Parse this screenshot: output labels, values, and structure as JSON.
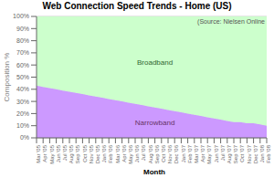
{
  "chart_data": {
    "type": "area",
    "title": "Web Connection Speed Trends - Home (US)",
    "xlabel": "Month",
    "ylabel": "Composition %",
    "stacked": true,
    "grid": true,
    "categories": [
      "Mar\n'05",
      "Apr\n'05",
      "May\n'05",
      "Jun\n'05",
      "Jul\n'05",
      "Aug\n'05",
      "Sep\n'05",
      "Oct\n'05",
      "Nov\n'05",
      "Dec\n'05",
      "Jan\n'06",
      "Feb\n'06",
      "Mar\n'06",
      "Apr\n'06",
      "May\n'06",
      "Jun\n'06",
      "Jul\n'06",
      "Aug\n'06",
      "Sep\n'06",
      "Oct\n'06",
      "Nov\n'06",
      "Dec\n'06",
      "Jan\n'07",
      "Feb\n'07",
      "Mar\n'07",
      "Apr\n'07",
      "May\n'07",
      "Jun\n'07",
      "Jul\n'07",
      "Aug\n'07",
      "Sep\n'07",
      "Oct\n'07",
      "Nov\n'07",
      "Dec\n'07",
      "Jan\n'08",
      "Feb\n'08"
    ],
    "series": [
      {
        "name": "Narrowband",
        "color": "#cc99ff",
        "values": [
          43,
          42,
          41,
          40,
          39,
          38,
          37,
          36,
          35,
          34,
          33,
          32,
          31,
          30,
          29,
          28,
          27,
          26,
          25,
          24,
          23,
          22,
          21,
          20,
          19,
          18,
          17,
          16,
          15,
          14,
          13,
          13,
          12,
          12,
          11,
          10
        ]
      },
      {
        "name": "Broadband",
        "color": "#ccffcc",
        "values": [
          57,
          58,
          59,
          60,
          61,
          62,
          63,
          64,
          65,
          66,
          67,
          68,
          69,
          70,
          71,
          72,
          73,
          74,
          75,
          76,
          77,
          78,
          79,
          80,
          81,
          82,
          83,
          84,
          85,
          86,
          87,
          87,
          88,
          88,
          89,
          90
        ]
      }
    ],
    "ylim": [
      0,
      100
    ],
    "yticks": [
      {
        "value": 0,
        "label": "0%"
      },
      {
        "value": 10,
        "label": "10%"
      },
      {
        "value": 20,
        "label": "20%"
      },
      {
        "value": 30,
        "label": "30%"
      },
      {
        "value": 40,
        "label": "40%"
      },
      {
        "value": 50,
        "label": "50%"
      },
      {
        "value": 60,
        "label": "60%"
      },
      {
        "value": 70,
        "label": "70%"
      },
      {
        "value": 80,
        "label": "80%"
      },
      {
        "value": 90,
        "label": "90%"
      },
      {
        "value": 100,
        "label": "100%"
      }
    ],
    "annotations": [
      {
        "text": "(Source: Nielsen Online",
        "color": "#555555"
      },
      {
        "text": "Broadband",
        "color": "#336633"
      },
      {
        "text": "Narrowband",
        "color": "#663366"
      }
    ]
  }
}
